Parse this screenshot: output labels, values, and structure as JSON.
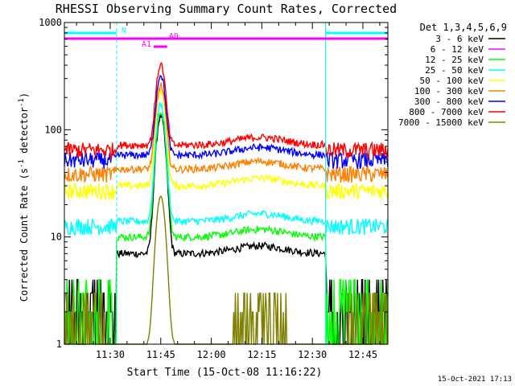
{
  "chart_data": {
    "type": "line",
    "title": "RHESSI Observing Summary Count Rates, Corrected",
    "xlabel": "Start Time (15-Oct-08 11:16:22)",
    "ylabel_main": "Corrected Count Rate (s",
    "ylabel_sup1": "-1",
    "ylabel_mid": " detector",
    "ylabel_sup2": "-1",
    "ylabel_end": ")",
    "yscale": "log",
    "ylim": [
      1,
      1000
    ],
    "xlim_minutes": [
      0,
      96
    ],
    "x_ticks": [
      {
        "label": "11:30",
        "minute": 13.6
      },
      {
        "label": "11:45",
        "minute": 28.6
      },
      {
        "label": "12:00",
        "minute": 43.6
      },
      {
        "label": "12:15",
        "minute": 58.6
      },
      {
        "label": "12:30",
        "minute": 73.6
      },
      {
        "label": "12:45",
        "minute": 88.6
      }
    ],
    "y_ticks": [
      {
        "label": "1",
        "value": 1
      },
      {
        "label": "10",
        "value": 10
      },
      {
        "label": "100",
        "value": 100
      },
      {
        "label": "1000",
        "value": 1000
      }
    ],
    "legend_title": "Det 1,3,4,5,6,9",
    "legend_position": "right",
    "series": [
      {
        "name": "3 - 6 keV",
        "color": "#000000",
        "base": 7,
        "peak": 135
      },
      {
        "name": "6 - 12 keV",
        "color": "#ff00ff",
        "base": null,
        "peak": null
      },
      {
        "name": "12 - 25 keV",
        "color": "#00ff00",
        "base": 10,
        "peak": 150
      },
      {
        "name": "25 - 50 keV",
        "color": "#00ffff",
        "base": 14,
        "peak": 175
      },
      {
        "name": "50 - 100 keV",
        "color": "#ffff00",
        "base": 30,
        "peak": 230
      },
      {
        "name": "100 - 300 keV",
        "color": "#ff8000",
        "base": 43,
        "peak": 260
      },
      {
        "name": "300 - 800 keV",
        "color": "#0000ff",
        "base": 58,
        "peak": 330
      },
      {
        "name": "800 - 7000 keV",
        "color": "#ff0000",
        "base": 72,
        "peak": 410
      },
      {
        "name": "7000 - 15000 keV",
        "color": "#808000",
        "base": 1.6,
        "peak": 24
      }
    ],
    "flags": [
      {
        "label": "N",
        "color": "#00ffff",
        "segments": [
          [
            0,
            15.5
          ],
          [
            77.5,
            96
          ]
        ]
      },
      {
        "label": "A0",
        "color": "#ff00ff",
        "segments": [
          [
            0,
            96
          ]
        ]
      },
      {
        "label": "A1",
        "color": "#ff00ff",
        "segments": [
          [
            26.5,
            30.5
          ]
        ]
      }
    ],
    "night_intervals": [
      [
        15.5,
        77.5
      ]
    ],
    "flare_peak_minute": 28.6
  },
  "timestamp": "15-Oct-2021 17:13"
}
